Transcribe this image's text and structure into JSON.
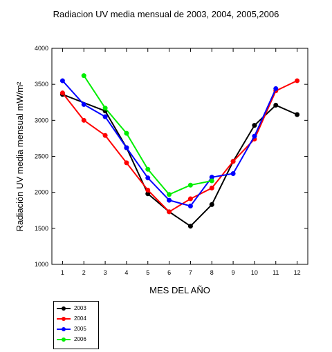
{
  "chart_data": {
    "type": "line",
    "title": "Radiacion UV media mensual de 2003, 2004, 2005,2006",
    "xlabel": "MES DEL AÑO",
    "ylabel": "Radiación UV media mensual  mW/m²",
    "xlim": [
      0.5,
      12.5
    ],
    "ylim": [
      1000,
      4000
    ],
    "x_ticks": [
      1,
      2,
      3,
      4,
      5,
      6,
      7,
      8,
      9,
      10,
      11,
      12
    ],
    "y_ticks": [
      1000,
      1500,
      2000,
      2500,
      3000,
      3500,
      4000
    ],
    "grid": false,
    "legend_position": "below-left",
    "series": [
      {
        "name": "2003",
        "color": "#000000",
        "x": [
          1,
          3,
          4,
          5,
          6,
          7,
          8,
          9,
          10,
          11,
          12
        ],
        "y": [
          3360,
          3130,
          2620,
          1980,
          1730,
          1530,
          1830,
          2430,
          2930,
          3210,
          3080
        ]
      },
      {
        "name": "2004",
        "color": "#ff0000",
        "x": [
          1,
          2,
          3,
          4,
          5,
          6,
          7,
          8,
          9,
          10,
          11,
          12
        ],
        "y": [
          3380,
          3000,
          2790,
          2410,
          2030,
          1730,
          1910,
          2060,
          2430,
          2740,
          3410,
          3550
        ]
      },
      {
        "name": "2005",
        "color": "#0000ff",
        "x": [
          1,
          2,
          3,
          4,
          5,
          6,
          7,
          8,
          9,
          10,
          11
        ],
        "y": [
          3550,
          3220,
          3050,
          2620,
          2200,
          1890,
          1810,
          2210,
          2260,
          2780,
          3440
        ]
      },
      {
        "name": "2006",
        "color": "#00ee00",
        "x": [
          2,
          3,
          4,
          5,
          6,
          7,
          8
        ],
        "y": [
          3620,
          3170,
          2820,
          2320,
          1970,
          2100,
          2160
        ]
      }
    ]
  }
}
